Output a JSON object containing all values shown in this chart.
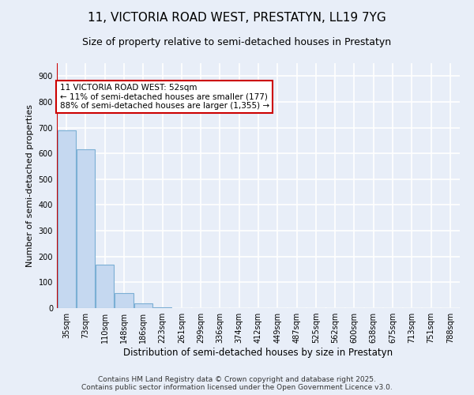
{
  "title": "11, VICTORIA ROAD WEST, PRESTATYN, LL19 7YG",
  "subtitle": "Size of property relative to semi-detached houses in Prestatyn",
  "xlabel": "Distribution of semi-detached houses by size in Prestatyn",
  "ylabel": "Number of semi-detached properties",
  "categories": [
    "35sqm",
    "73sqm",
    "110sqm",
    "148sqm",
    "186sqm",
    "223sqm",
    "261sqm",
    "299sqm",
    "336sqm",
    "374sqm",
    "412sqm",
    "449sqm",
    "487sqm",
    "525sqm",
    "562sqm",
    "600sqm",
    "638sqm",
    "675sqm",
    "713sqm",
    "751sqm",
    "788sqm"
  ],
  "values": [
    690,
    615,
    170,
    57,
    17,
    3,
    1,
    0,
    0,
    0,
    0,
    0,
    0,
    0,
    0,
    0,
    0,
    0,
    0,
    0,
    0
  ],
  "bar_color": "#c5d8f0",
  "bar_edgecolor": "#7bafd4",
  "background_color": "#e8eef8",
  "grid_color": "#ffffff",
  "annotation_line1": "11 VICTORIA ROAD WEST: 52sqm",
  "annotation_line2": "← 11% of semi-detached houses are smaller (177)",
  "annotation_line3": "88% of semi-detached houses are larger (1,355) →",
  "annotation_box_facecolor": "#ffffff",
  "annotation_box_edgecolor": "#cc0000",
  "redline_color": "#cc0000",
  "ylim": [
    0,
    950
  ],
  "yticks": [
    0,
    100,
    200,
    300,
    400,
    500,
    600,
    700,
    800,
    900
  ],
  "footer": "Contains HM Land Registry data © Crown copyright and database right 2025.\nContains public sector information licensed under the Open Government Licence v3.0.",
  "title_fontsize": 11,
  "subtitle_fontsize": 9,
  "ylabel_fontsize": 8,
  "xlabel_fontsize": 8.5,
  "tick_fontsize": 7,
  "footer_fontsize": 6.5,
  "annotation_fontsize": 7.5
}
